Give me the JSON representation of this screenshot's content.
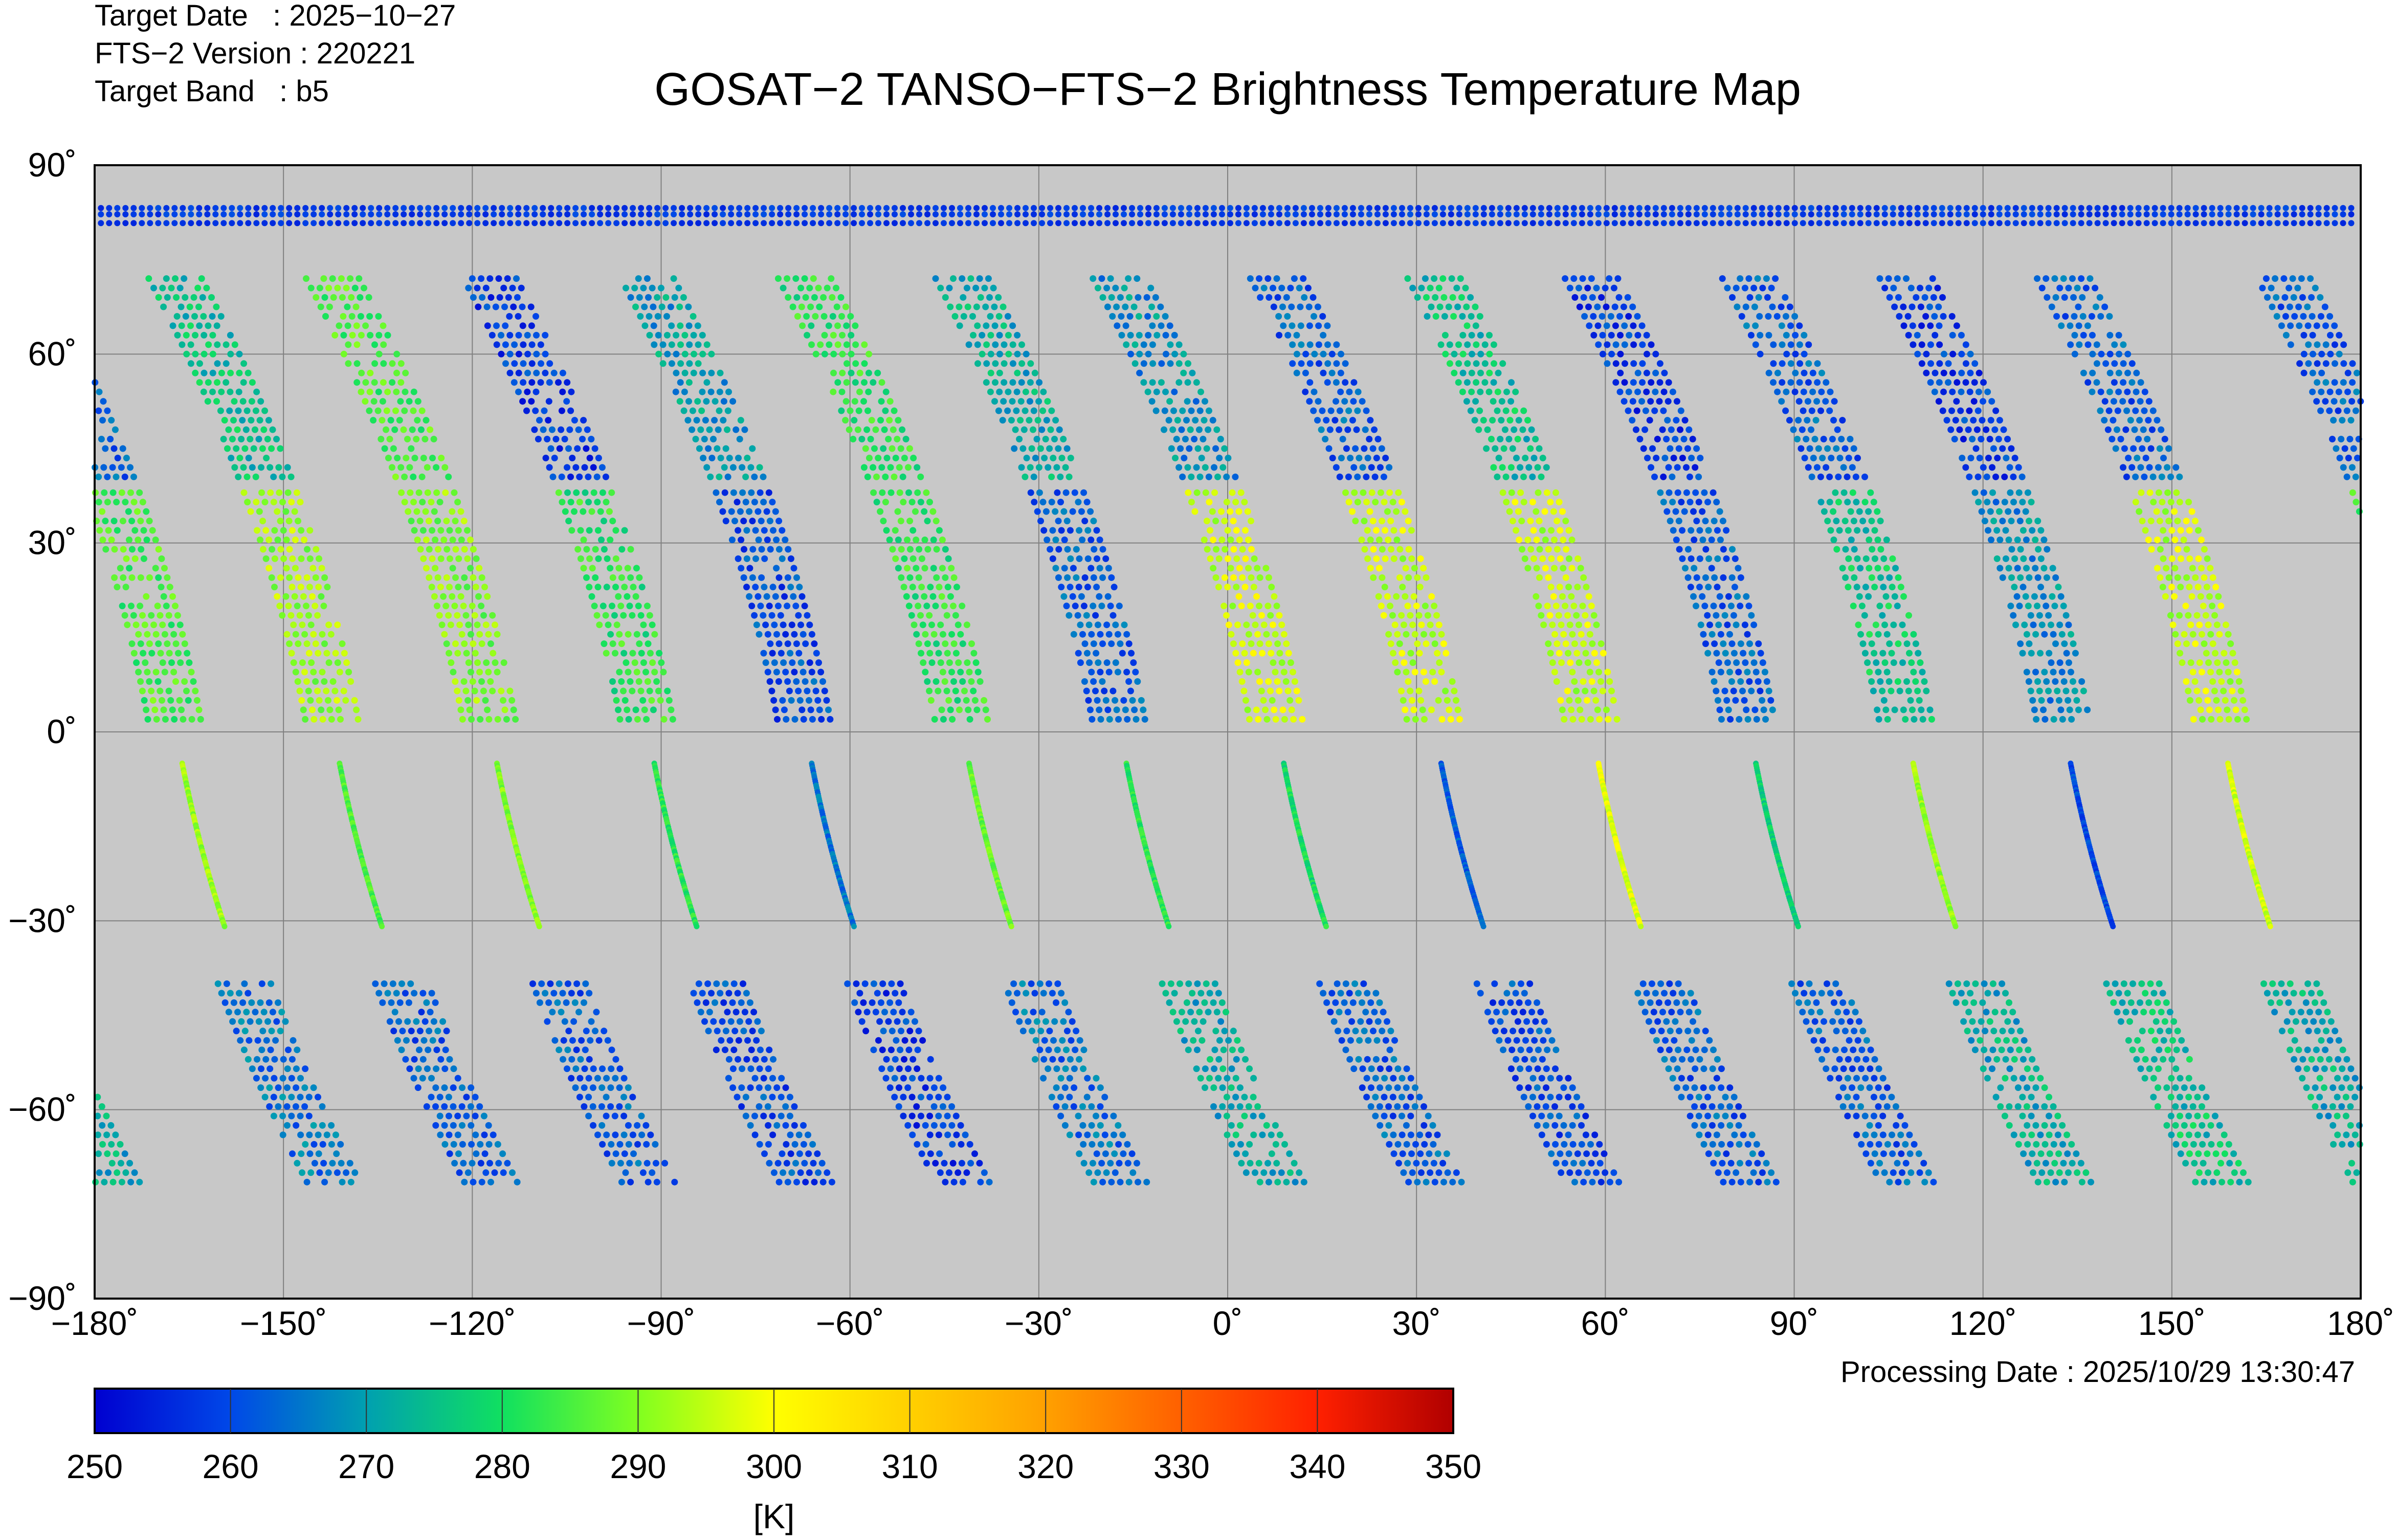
{
  "header": {
    "target_date": "Target Date   : 2025−10−27",
    "version": "FTS−2 Version : 220221",
    "band": "Target Band   : b5"
  },
  "processing_date": "Processing Date : 2025/10/29 13:30:47",
  "chart_data": {
    "type": "scatter",
    "title": "GOSAT−2 TANSO−FTS−2 Brightness Temperature Map",
    "xlim": [
      -180,
      180
    ],
    "ylim": [
      -90,
      90
    ],
    "grid": true,
    "x_ticks": [
      -180,
      -150,
      -120,
      -90,
      -60,
      -30,
      0,
      30,
      60,
      90,
      120,
      150,
      180
    ],
    "x_tick_labels": [
      "−180˚",
      "−150˚",
      "−120˚",
      "−90˚",
      "−60˚",
      "−30˚",
      "0˚",
      "30˚",
      "60˚",
      "90˚",
      "120˚",
      "150˚",
      "180˚"
    ],
    "y_ticks": [
      90,
      60,
      30,
      0,
      -30,
      -60,
      -90
    ],
    "y_tick_labels": [
      "90˚",
      "60˚",
      "30˚",
      "0˚",
      "−30˚",
      "−60˚",
      "−90˚"
    ],
    "colorbar": {
      "label": "[K]",
      "range": [
        250,
        350
      ],
      "ticks": [
        250,
        260,
        270,
        280,
        290,
        300,
        310,
        320,
        330,
        340,
        350
      ],
      "tick_labels": [
        "250",
        "260",
        "270",
        "280",
        "290",
        "300",
        "310",
        "320",
        "330",
        "340",
        "350"
      ],
      "colors": [
        "#0000d0",
        "#0048e8",
        "#00a0b0",
        "#10e060",
        "#80ff20",
        "#ffff00",
        "#ffd000",
        "#ffa000",
        "#ff6000",
        "#ff2000",
        "#b00000"
      ]
    },
    "orbit_equator_lons": [
      -167,
      -142,
      -117,
      -92,
      -67,
      -42,
      -17,
      8,
      33,
      58,
      83,
      108,
      133,
      158
    ],
    "orbit_segments_K": [
      {
        "lat": [
          72,
          40
        ],
        "mode": "grid",
        "temps": [
          262,
          275,
          285,
          258,
          270,
          282,
          272,
          268,
          262,
          275,
          258,
          262,
          258,
          262
        ]
      },
      {
        "lat": [
          38,
          2
        ],
        "mode": "grid",
        "temps": [
          285,
          292,
          290,
          282,
          260,
          282,
          262,
          296,
          295,
          295,
          262,
          276,
          268,
          295
        ]
      },
      {
        "lat": [
          -5,
          -31
        ],
        "mode": "line",
        "temps": [
          292,
          285,
          290,
          282,
          265,
          288,
          282,
          280,
          262,
          298,
          278,
          292,
          260,
          296
        ]
      },
      {
        "lat": [
          -40,
          -72
        ],
        "mode": "grid",
        "temps": [
          265,
          262,
          262,
          260,
          258,
          264,
          272,
          262,
          260,
          262,
          262,
          272,
          275,
          272
        ]
      }
    ],
    "polar_band_K": 255
  }
}
